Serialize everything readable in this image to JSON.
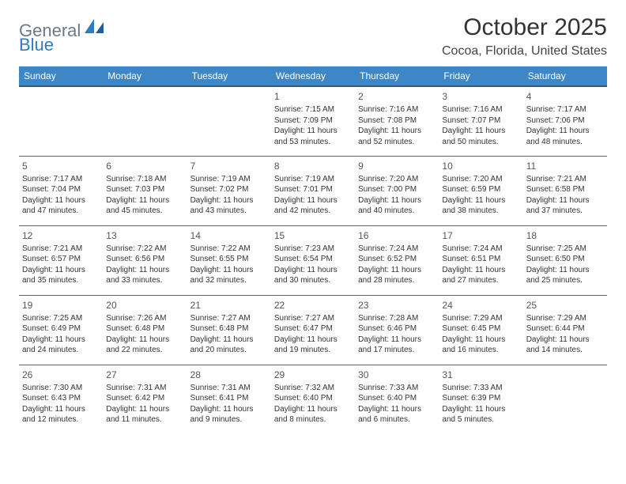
{
  "logo": {
    "part1": "General",
    "part2": "Blue"
  },
  "title": "October 2025",
  "location": "Cocoa, Florida, United States",
  "colors": {
    "header_bg": "#3d87c7",
    "header_border": "#255e8e",
    "row_border": "#2f6fa6",
    "logo_gray": "#6b7a86",
    "logo_blue": "#2f7bbf"
  },
  "weekdays": [
    "Sunday",
    "Monday",
    "Tuesday",
    "Wednesday",
    "Thursday",
    "Friday",
    "Saturday"
  ],
  "weeks": [
    [
      {
        "num": "",
        "l1": "",
        "l2": "",
        "l3": "",
        "l4": ""
      },
      {
        "num": "",
        "l1": "",
        "l2": "",
        "l3": "",
        "l4": ""
      },
      {
        "num": "",
        "l1": "",
        "l2": "",
        "l3": "",
        "l4": ""
      },
      {
        "num": "1",
        "l1": "Sunrise: 7:15 AM",
        "l2": "Sunset: 7:09 PM",
        "l3": "Daylight: 11 hours",
        "l4": "and 53 minutes."
      },
      {
        "num": "2",
        "l1": "Sunrise: 7:16 AM",
        "l2": "Sunset: 7:08 PM",
        "l3": "Daylight: 11 hours",
        "l4": "and 52 minutes."
      },
      {
        "num": "3",
        "l1": "Sunrise: 7:16 AM",
        "l2": "Sunset: 7:07 PM",
        "l3": "Daylight: 11 hours",
        "l4": "and 50 minutes."
      },
      {
        "num": "4",
        "l1": "Sunrise: 7:17 AM",
        "l2": "Sunset: 7:06 PM",
        "l3": "Daylight: 11 hours",
        "l4": "and 48 minutes."
      }
    ],
    [
      {
        "num": "5",
        "l1": "Sunrise: 7:17 AM",
        "l2": "Sunset: 7:04 PM",
        "l3": "Daylight: 11 hours",
        "l4": "and 47 minutes."
      },
      {
        "num": "6",
        "l1": "Sunrise: 7:18 AM",
        "l2": "Sunset: 7:03 PM",
        "l3": "Daylight: 11 hours",
        "l4": "and 45 minutes."
      },
      {
        "num": "7",
        "l1": "Sunrise: 7:19 AM",
        "l2": "Sunset: 7:02 PM",
        "l3": "Daylight: 11 hours",
        "l4": "and 43 minutes."
      },
      {
        "num": "8",
        "l1": "Sunrise: 7:19 AM",
        "l2": "Sunset: 7:01 PM",
        "l3": "Daylight: 11 hours",
        "l4": "and 42 minutes."
      },
      {
        "num": "9",
        "l1": "Sunrise: 7:20 AM",
        "l2": "Sunset: 7:00 PM",
        "l3": "Daylight: 11 hours",
        "l4": "and 40 minutes."
      },
      {
        "num": "10",
        "l1": "Sunrise: 7:20 AM",
        "l2": "Sunset: 6:59 PM",
        "l3": "Daylight: 11 hours",
        "l4": "and 38 minutes."
      },
      {
        "num": "11",
        "l1": "Sunrise: 7:21 AM",
        "l2": "Sunset: 6:58 PM",
        "l3": "Daylight: 11 hours",
        "l4": "and 37 minutes."
      }
    ],
    [
      {
        "num": "12",
        "l1": "Sunrise: 7:21 AM",
        "l2": "Sunset: 6:57 PM",
        "l3": "Daylight: 11 hours",
        "l4": "and 35 minutes."
      },
      {
        "num": "13",
        "l1": "Sunrise: 7:22 AM",
        "l2": "Sunset: 6:56 PM",
        "l3": "Daylight: 11 hours",
        "l4": "and 33 minutes."
      },
      {
        "num": "14",
        "l1": "Sunrise: 7:22 AM",
        "l2": "Sunset: 6:55 PM",
        "l3": "Daylight: 11 hours",
        "l4": "and 32 minutes."
      },
      {
        "num": "15",
        "l1": "Sunrise: 7:23 AM",
        "l2": "Sunset: 6:54 PM",
        "l3": "Daylight: 11 hours",
        "l4": "and 30 minutes."
      },
      {
        "num": "16",
        "l1": "Sunrise: 7:24 AM",
        "l2": "Sunset: 6:52 PM",
        "l3": "Daylight: 11 hours",
        "l4": "and 28 minutes."
      },
      {
        "num": "17",
        "l1": "Sunrise: 7:24 AM",
        "l2": "Sunset: 6:51 PM",
        "l3": "Daylight: 11 hours",
        "l4": "and 27 minutes."
      },
      {
        "num": "18",
        "l1": "Sunrise: 7:25 AM",
        "l2": "Sunset: 6:50 PM",
        "l3": "Daylight: 11 hours",
        "l4": "and 25 minutes."
      }
    ],
    [
      {
        "num": "19",
        "l1": "Sunrise: 7:25 AM",
        "l2": "Sunset: 6:49 PM",
        "l3": "Daylight: 11 hours",
        "l4": "and 24 minutes."
      },
      {
        "num": "20",
        "l1": "Sunrise: 7:26 AM",
        "l2": "Sunset: 6:48 PM",
        "l3": "Daylight: 11 hours",
        "l4": "and 22 minutes."
      },
      {
        "num": "21",
        "l1": "Sunrise: 7:27 AM",
        "l2": "Sunset: 6:48 PM",
        "l3": "Daylight: 11 hours",
        "l4": "and 20 minutes."
      },
      {
        "num": "22",
        "l1": "Sunrise: 7:27 AM",
        "l2": "Sunset: 6:47 PM",
        "l3": "Daylight: 11 hours",
        "l4": "and 19 minutes."
      },
      {
        "num": "23",
        "l1": "Sunrise: 7:28 AM",
        "l2": "Sunset: 6:46 PM",
        "l3": "Daylight: 11 hours",
        "l4": "and 17 minutes."
      },
      {
        "num": "24",
        "l1": "Sunrise: 7:29 AM",
        "l2": "Sunset: 6:45 PM",
        "l3": "Daylight: 11 hours",
        "l4": "and 16 minutes."
      },
      {
        "num": "25",
        "l1": "Sunrise: 7:29 AM",
        "l2": "Sunset: 6:44 PM",
        "l3": "Daylight: 11 hours",
        "l4": "and 14 minutes."
      }
    ],
    [
      {
        "num": "26",
        "l1": "Sunrise: 7:30 AM",
        "l2": "Sunset: 6:43 PM",
        "l3": "Daylight: 11 hours",
        "l4": "and 12 minutes."
      },
      {
        "num": "27",
        "l1": "Sunrise: 7:31 AM",
        "l2": "Sunset: 6:42 PM",
        "l3": "Daylight: 11 hours",
        "l4": "and 11 minutes."
      },
      {
        "num": "28",
        "l1": "Sunrise: 7:31 AM",
        "l2": "Sunset: 6:41 PM",
        "l3": "Daylight: 11 hours",
        "l4": "and 9 minutes."
      },
      {
        "num": "29",
        "l1": "Sunrise: 7:32 AM",
        "l2": "Sunset: 6:40 PM",
        "l3": "Daylight: 11 hours",
        "l4": "and 8 minutes."
      },
      {
        "num": "30",
        "l1": "Sunrise: 7:33 AM",
        "l2": "Sunset: 6:40 PM",
        "l3": "Daylight: 11 hours",
        "l4": "and 6 minutes."
      },
      {
        "num": "31",
        "l1": "Sunrise: 7:33 AM",
        "l2": "Sunset: 6:39 PM",
        "l3": "Daylight: 11 hours",
        "l4": "and 5 minutes."
      },
      {
        "num": "",
        "l1": "",
        "l2": "",
        "l3": "",
        "l4": ""
      }
    ]
  ]
}
